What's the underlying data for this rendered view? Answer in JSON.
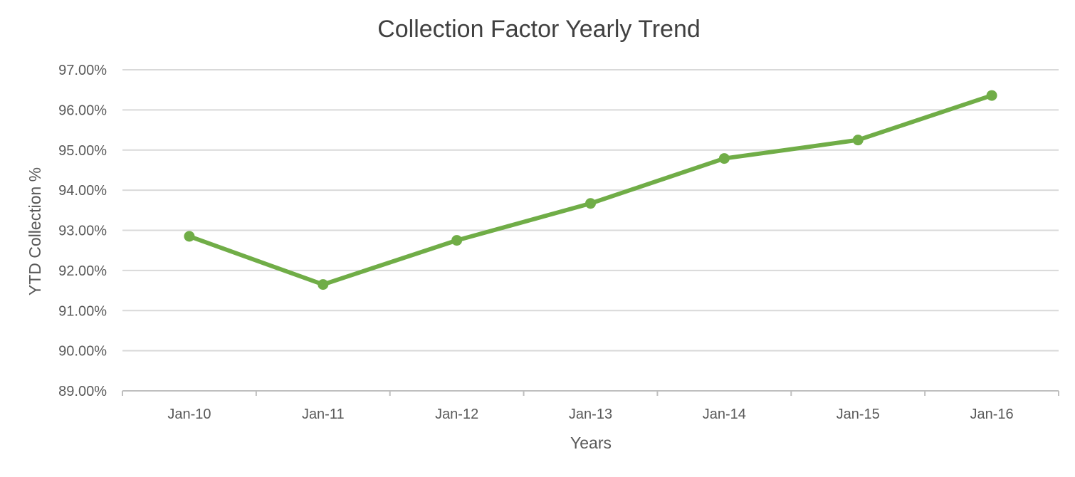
{
  "chart_data": {
    "type": "line",
    "title": "Collection Factor Yearly Trend",
    "xlabel": "Years",
    "ylabel": "YTD Collection %",
    "categories": [
      "Jan-10",
      "Jan-11",
      "Jan-12",
      "Jan-13",
      "Jan-14",
      "Jan-15",
      "Jan-16"
    ],
    "series": [
      {
        "values": [
          92.85,
          91.65,
          92.75,
          93.67,
          94.79,
          95.25,
          96.36
        ],
        "color": "#70ad47"
      }
    ],
    "ylim": [
      89,
      97
    ],
    "yticks": [
      "89.00%",
      "90.00%",
      "91.00%",
      "92.00%",
      "93.00%",
      "94.00%",
      "95.00%",
      "96.00%",
      "97.00%"
    ],
    "grid": true,
    "legend": "none",
    "colors": {
      "gridline": "#d9d9d9",
      "axis": "#bfbfbf",
      "text": "#595959"
    }
  }
}
